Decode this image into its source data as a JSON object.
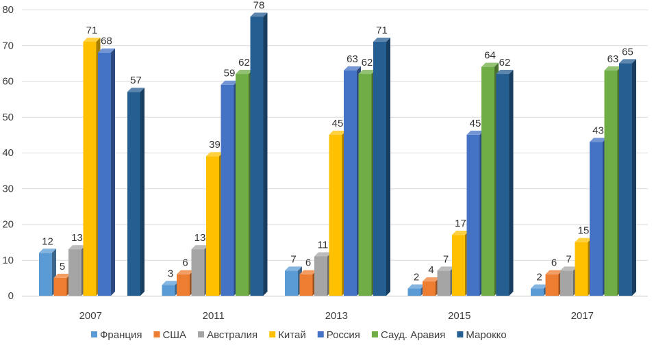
{
  "chart_data": {
    "type": "bar",
    "title": "",
    "xlabel": "",
    "ylabel": "",
    "ylim": [
      0,
      80
    ],
    "yticks": [
      0,
      10,
      20,
      30,
      40,
      50,
      60,
      70,
      80
    ],
    "grid": true,
    "legend": "bottom",
    "categories": [
      "2007",
      "2011",
      "2013",
      "2015",
      "2017"
    ],
    "series": [
      {
        "name": "Франция",
        "color": "#5b9bd5",
        "values": [
          12,
          3,
          7,
          2,
          2
        ]
      },
      {
        "name": "США",
        "color": "#ed7d31",
        "values": [
          5,
          6,
          6,
          4,
          6
        ]
      },
      {
        "name": "Австралия",
        "color": "#a5a5a5",
        "values": [
          13,
          13,
          11,
          7,
          7
        ]
      },
      {
        "name": "Китай",
        "color": "#ffc000",
        "values": [
          71,
          39,
          45,
          17,
          15
        ]
      },
      {
        "name": "Россия",
        "color": "#4472c4",
        "values": [
          68,
          59,
          63,
          45,
          43
        ]
      },
      {
        "name": "Сауд. Аравия",
        "color": "#70ad47",
        "values": [
          null,
          62,
          62,
          64,
          63
        ]
      },
      {
        "name": "Марокко",
        "color": "#255e91",
        "values": [
          57,
          78,
          71,
          62,
          65
        ]
      }
    ]
  }
}
